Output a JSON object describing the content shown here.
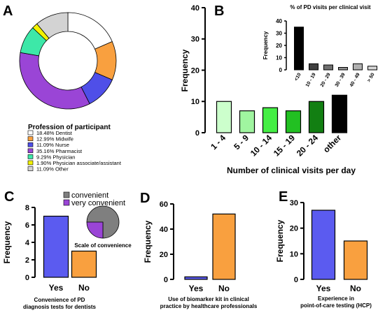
{
  "chart_data": [
    {
      "id": "A",
      "panel_label": "A",
      "type": "pie",
      "title": "Profession of participant",
      "slices": [
        {
          "label": "Dentist",
          "percent": 18.48,
          "display": "18.48%",
          "color": "#ffffff"
        },
        {
          "label": "Midwife",
          "percent": 12.99,
          "display": "12.99%",
          "color": "#f9a03f"
        },
        {
          "label": "Nurse",
          "percent": 11.09,
          "display": "11.09%",
          "color": "#4f4fe8"
        },
        {
          "label": "Pharmacist",
          "percent": 35.16,
          "display": "35.16%",
          "color": "#9a45d6"
        },
        {
          "label": "Physician",
          "percent": 9.29,
          "display": "9.29%",
          "color": "#3de8a8"
        },
        {
          "label": "Physician associate/assistant",
          "percent": 1.9,
          "display": "1.90%",
          "color": "#f2f200"
        },
        {
          "label": "Other",
          "percent": 11.09,
          "display": "11.09%",
          "color": "#d3d3d3"
        }
      ]
    },
    {
      "id": "B",
      "panel_label": "B",
      "type": "bar",
      "ylabel": "Frequency",
      "xlabel": "Number of clinical visits per day",
      "ylim": [
        0,
        40
      ],
      "yticks": [
        "0",
        "10",
        "20",
        "30",
        "40"
      ],
      "categories": [
        "1 - 4",
        "5 - 9",
        "10 - 14",
        "15 - 19",
        "20 - 24",
        "other"
      ],
      "values": [
        10,
        7,
        8,
        7,
        10,
        12
      ],
      "colors": [
        "#ccffcc",
        "#a0f5a0",
        "#44ee44",
        "#22c022",
        "#127f12",
        "#000000"
      ]
    },
    {
      "id": "B-inset",
      "type": "bar",
      "title": "% of PD visits per clinical visit",
      "ylabel": "Frequency",
      "ylim": [
        0,
        40
      ],
      "yticks": [
        "0",
        "10",
        "20",
        "30",
        "40"
      ],
      "categories": [
        "<10",
        "10 - 19",
        "20 - 29",
        "30 - 39",
        "40 - 49",
        "> 50"
      ],
      "values": [
        35,
        5,
        4,
        2,
        5,
        3
      ],
      "colors": [
        "#000000",
        "#404040",
        "#707070",
        "#909090",
        "#b0b0b0",
        "#d6d6d6"
      ]
    },
    {
      "id": "C",
      "panel_label": "C",
      "type": "bar",
      "ylabel": "Frequency",
      "caption": [
        "Convenience of PD",
        "diagnosis tests for dentists"
      ],
      "ylim": [
        0,
        8
      ],
      "yticks": [
        "0",
        "2",
        "4",
        "6",
        "8"
      ],
      "categories": [
        "Yes",
        "No"
      ],
      "values": [
        7,
        3
      ],
      "colors": [
        "#5b5bf0",
        "#f9a03f"
      ]
    },
    {
      "id": "C-inset",
      "type": "pie",
      "title": "Scale of convenience",
      "slices": [
        {
          "label": "convenient",
          "percent": 75,
          "color": "#7f7f7f"
        },
        {
          "label": "very convenient",
          "percent": 25,
          "color": "#9a45d6"
        }
      ]
    },
    {
      "id": "D",
      "panel_label": "D",
      "type": "bar",
      "ylabel": "Frequency",
      "caption": [
        "Use of biomarker kit in clinical",
        "practice by healthcare professionals"
      ],
      "ylim": [
        0,
        60
      ],
      "yticks": [
        "0",
        "20",
        "40",
        "60"
      ],
      "categories": [
        "Yes",
        "No"
      ],
      "values": [
        2,
        52
      ],
      "colors": [
        "#5b5bf0",
        "#f9a03f"
      ]
    },
    {
      "id": "E",
      "panel_label": "E",
      "type": "bar",
      "ylabel": "Frequency",
      "caption": [
        "Experience in",
        "point-of-care testing (HCP)"
      ],
      "ylim": [
        0,
        30
      ],
      "yticks": [
        "0",
        "10",
        "20",
        "30"
      ],
      "categories": [
        "Yes",
        "No"
      ],
      "values": [
        27,
        15
      ],
      "colors": [
        "#5b5bf0",
        "#f9a03f"
      ]
    }
  ]
}
